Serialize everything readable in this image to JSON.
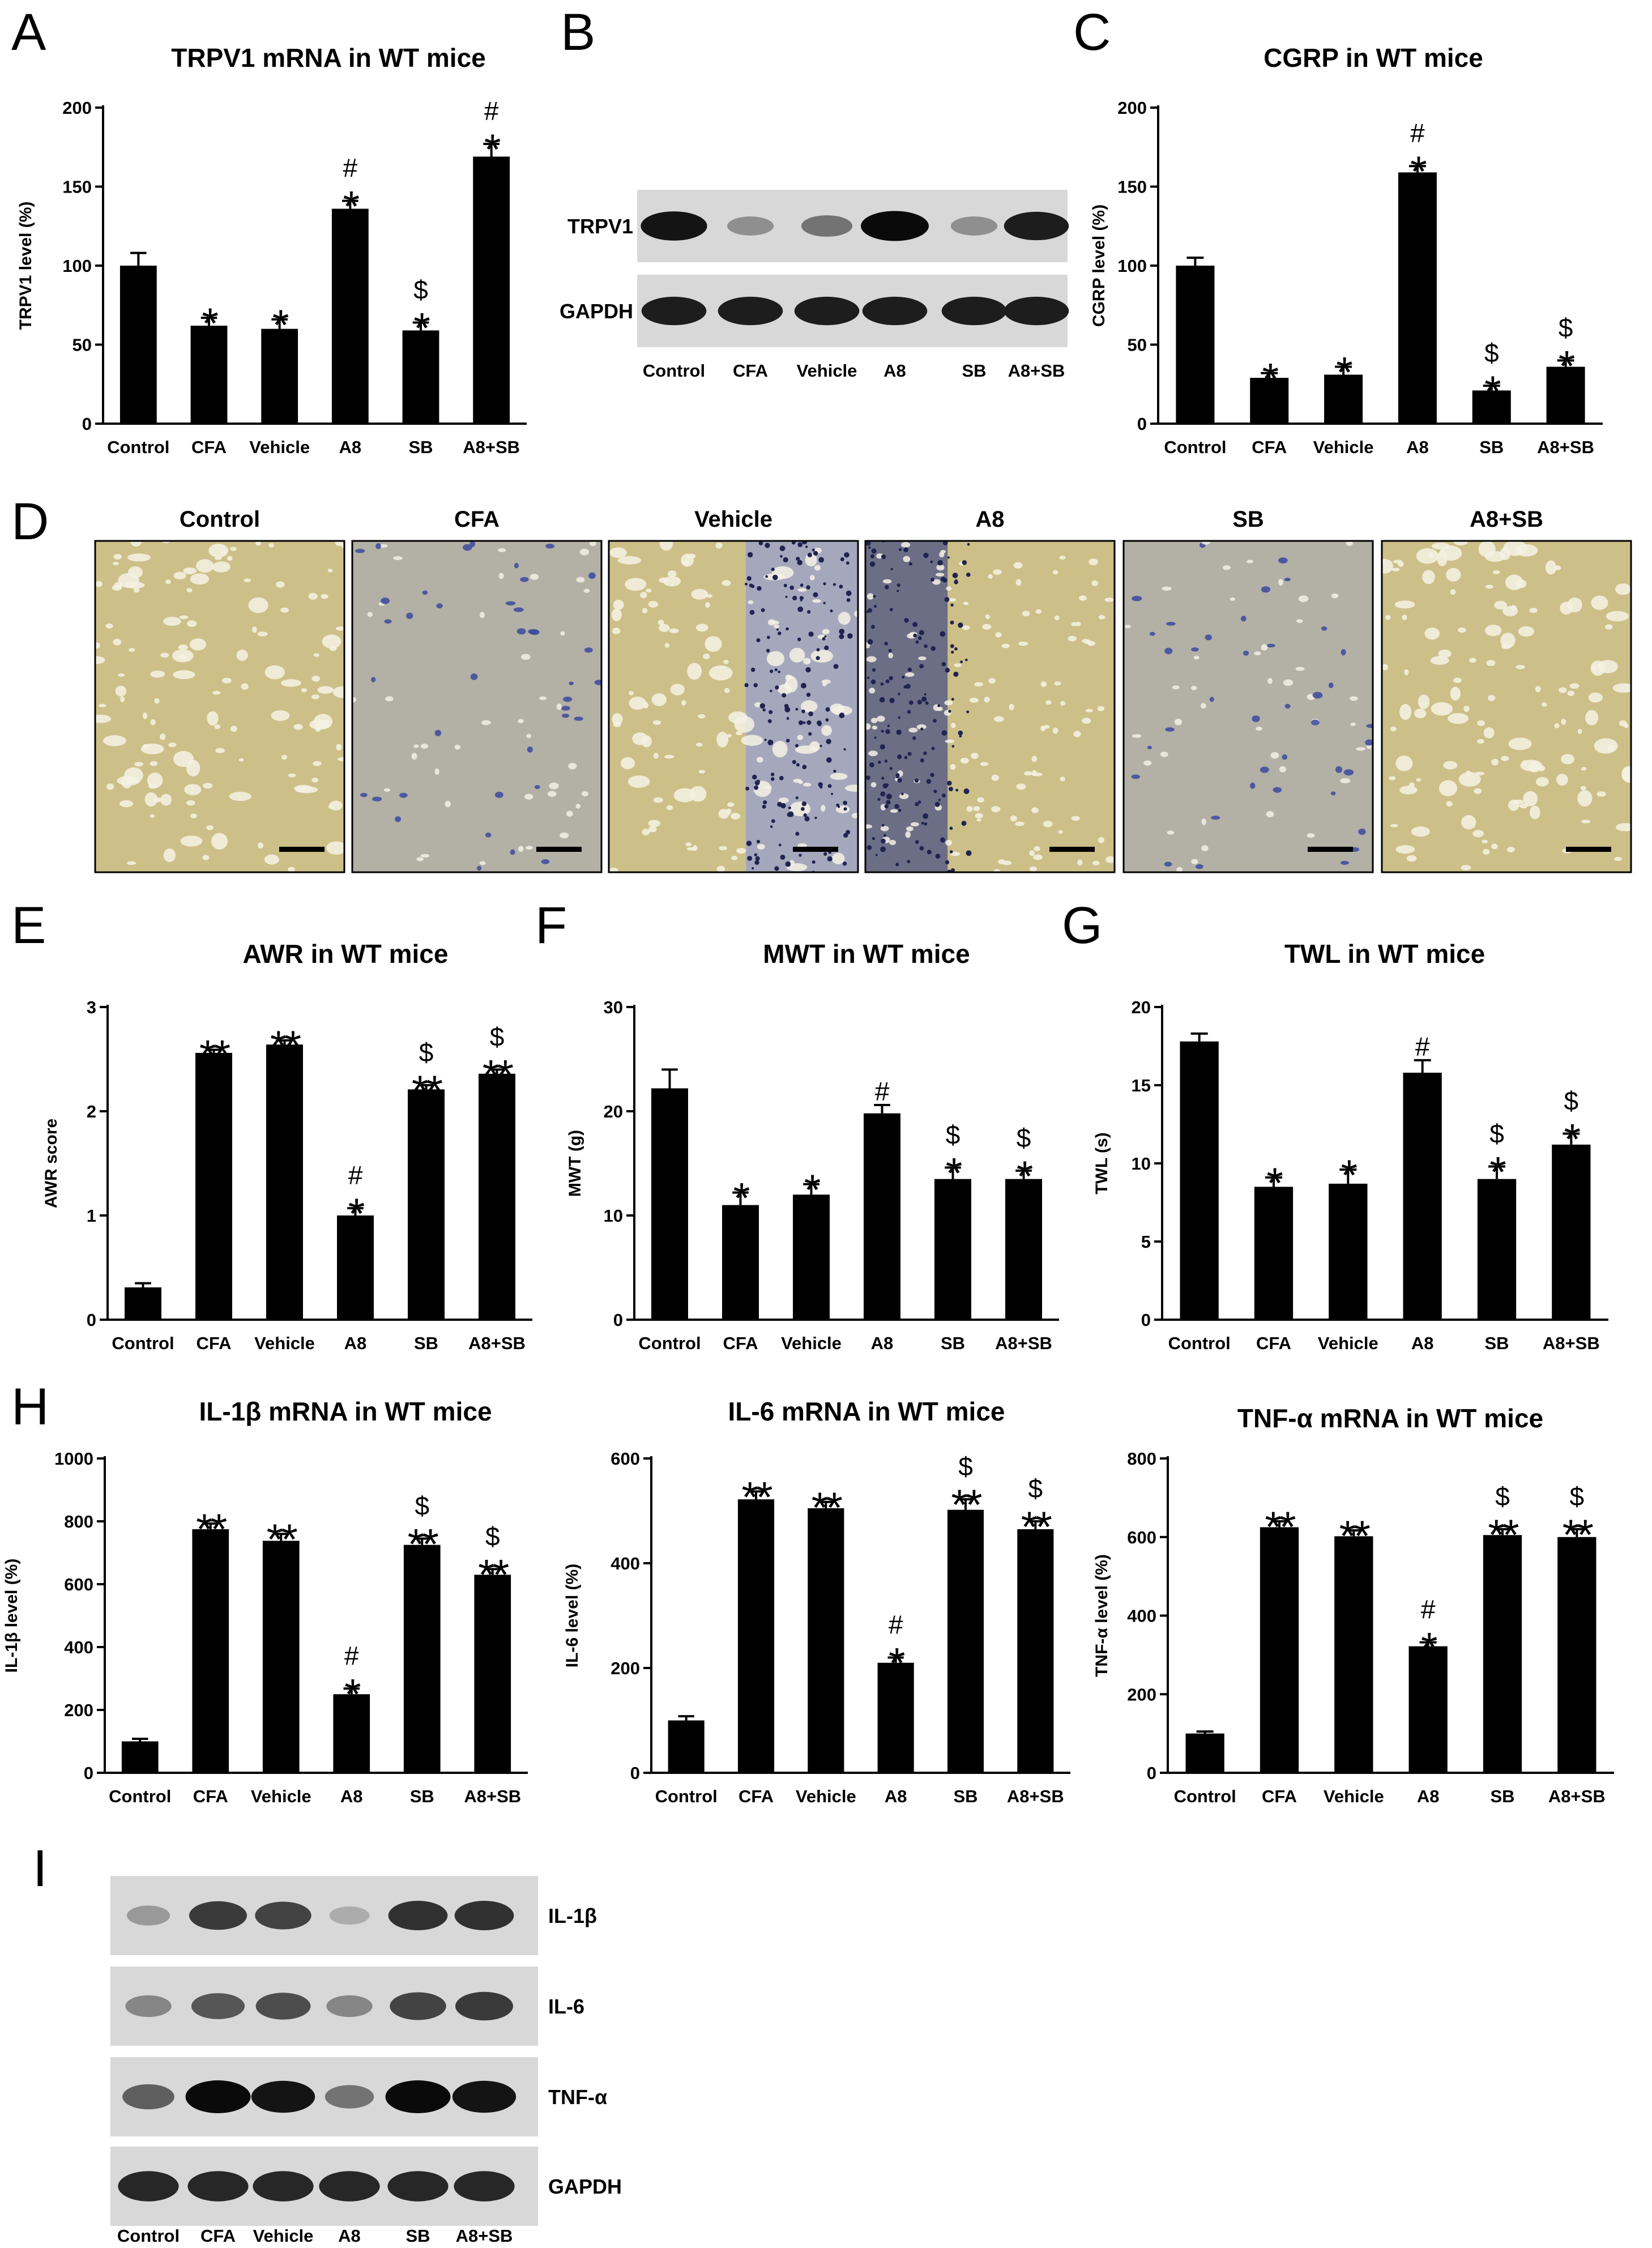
{
  "panel_letters": [
    "A",
    "B",
    "C",
    "D",
    "E",
    "F",
    "G",
    "H",
    "I"
  ],
  "colors": {
    "bar": "#000000",
    "axis": "#000000",
    "blot_bg": "#d8d8d8",
    "band": "#111111",
    "tissue_tan": "#cdbf88",
    "tissue_grey": "#b3b0a6",
    "nuclei": "#3b4a9c"
  },
  "groups": [
    "Control",
    "CFA",
    "Vehicle",
    "A8",
    "SB",
    "A8+SB"
  ],
  "chart_data": [
    {
      "id": "A",
      "type": "bar",
      "title": "TRPV1 mRNA in WT mice",
      "ylabel": "TRPV1 level (%)",
      "categories": [
        "Control",
        "CFA",
        "Vehicle",
        "A8",
        "SB",
        "A8+SB"
      ],
      "values": [
        100,
        62,
        60,
        136,
        59,
        169
      ],
      "errors": [
        8,
        5,
        6,
        5,
        5,
        8
      ],
      "ylim": [
        0,
        200
      ],
      "yticks": [
        0,
        50,
        100,
        150,
        200
      ],
      "annotations": [
        [],
        [
          "*"
        ],
        [
          "*"
        ],
        [
          "*",
          "#"
        ],
        [
          "*",
          "$"
        ],
        [
          "*",
          "#"
        ]
      ]
    },
    {
      "id": "C",
      "type": "bar",
      "title": "CGRP in WT mice",
      "ylabel": "CGRP level (%)",
      "categories": [
        "Control",
        "CFA",
        "Vehicle",
        "A8",
        "SB",
        "A8+SB"
      ],
      "values": [
        100,
        29,
        31,
        159,
        21,
        36
      ],
      "errors": [
        5,
        3,
        5,
        4,
        3,
        4
      ],
      "ylim": [
        0,
        200
      ],
      "yticks": [
        0,
        50,
        100,
        150,
        200
      ],
      "annotations": [
        [],
        [
          "*"
        ],
        [
          "*"
        ],
        [
          "*",
          "#"
        ],
        [
          "*",
          "$"
        ],
        [
          "*",
          "$"
        ]
      ]
    },
    {
      "id": "E",
      "type": "bar",
      "title": "AWR in WT mice",
      "ylabel": "AWR score",
      "categories": [
        "Control",
        "CFA",
        "Vehicle",
        "A8",
        "SB",
        "A8+SB"
      ],
      "values": [
        0.31,
        2.56,
        2.64,
        1.0,
        2.21,
        2.36
      ],
      "errors": [
        0.04,
        0.03,
        0.04,
        0.07,
        0.04,
        0.04
      ],
      "ylim": [
        0,
        3
      ],
      "yticks": [
        0,
        1,
        2,
        3
      ],
      "annotations": [
        [],
        [
          "**"
        ],
        [
          "**"
        ],
        [
          "*",
          "#"
        ],
        [
          "**",
          "$"
        ],
        [
          "**",
          "$"
        ]
      ]
    },
    {
      "id": "F",
      "type": "bar",
      "title": "MWT in WT mice",
      "ylabel": "MWT (g)",
      "categories": [
        "Control",
        "CFA",
        "Vehicle",
        "A8",
        "SB",
        "A8+SB"
      ],
      "values": [
        22.2,
        11.0,
        12.0,
        19.8,
        13.5,
        13.5
      ],
      "errors": [
        1.8,
        1.2,
        1.0,
        0.8,
        1.1,
        0.8
      ],
      "ylim": [
        0,
        30
      ],
      "yticks": [
        0,
        10,
        20,
        30
      ],
      "annotations": [
        [],
        [
          "*"
        ],
        [
          "*"
        ],
        [
          "#"
        ],
        [
          "*",
          "$"
        ],
        [
          "*",
          "$"
        ]
      ]
    },
    {
      "id": "G",
      "type": "bar",
      "title": "TWL in WT mice",
      "ylabel": "TWL (s)",
      "categories": [
        "Control",
        "CFA",
        "Vehicle",
        "A8",
        "SB",
        "A8+SB"
      ],
      "values": [
        17.8,
        8.5,
        8.7,
        15.8,
        9.0,
        11.2
      ],
      "errors": [
        0.5,
        0.6,
        0.9,
        0.8,
        0.8,
        0.7
      ],
      "ylim": [
        0,
        20
      ],
      "yticks": [
        0,
        5,
        10,
        15,
        20
      ],
      "annotations": [
        [],
        [
          "*"
        ],
        [
          "*"
        ],
        [
          "#"
        ],
        [
          "*",
          "$"
        ],
        [
          "*",
          "$"
        ]
      ]
    },
    {
      "id": "H1",
      "type": "bar",
      "title": "IL-1β mRNA in WT mice",
      "ylabel": "IL-1β level (%)",
      "categories": [
        "Control",
        "CFA",
        "Vehicle",
        "A8",
        "SB",
        "A8+SB"
      ],
      "values": [
        100,
        775,
        738,
        250,
        725,
        630
      ],
      "errors": [
        8,
        18,
        22,
        18,
        20,
        18
      ],
      "ylim": [
        0,
        1000
      ],
      "yticks": [
        0,
        200,
        400,
        600,
        800,
        1000
      ],
      "annotations": [
        [],
        [
          "**"
        ],
        [
          "**"
        ],
        [
          "*",
          "#"
        ],
        [
          "**",
          "$"
        ],
        [
          "**",
          "$"
        ]
      ]
    },
    {
      "id": "H2",
      "type": "bar",
      "title": "IL-6 mRNA in WT mice",
      "ylabel": "IL-6 level (%)",
      "categories": [
        "Control",
        "CFA",
        "Vehicle",
        "A8",
        "SB",
        "A8+SB"
      ],
      "values": [
        100,
        522,
        505,
        210,
        502,
        465
      ],
      "errors": [
        8,
        15,
        12,
        10,
        20,
        15
      ],
      "ylim": [
        0,
        600
      ],
      "yticks": [
        0,
        200,
        400,
        600
      ],
      "annotations": [
        [],
        [
          "**"
        ],
        [
          "**"
        ],
        [
          "*",
          "#"
        ],
        [
          "**",
          "$"
        ],
        [
          "**",
          "$"
        ]
      ]
    },
    {
      "id": "H3",
      "type": "bar",
      "title": "TNF-α mRNA in WT mice",
      "ylabel": "TNF-α level (%)",
      "categories": [
        "Control",
        "CFA",
        "Vehicle",
        "A8",
        "SB",
        "A8+SB"
      ],
      "values": [
        100,
        625,
        602,
        322,
        605,
        600
      ],
      "errors": [
        5,
        15,
        15,
        10,
        15,
        20
      ],
      "ylim": [
        0,
        800
      ],
      "yticks": [
        0,
        200,
        400,
        600,
        800
      ],
      "annotations": [
        [],
        [
          "**"
        ],
        [
          "**"
        ],
        [
          "*",
          "#"
        ],
        [
          "**",
          "$"
        ],
        [
          "**",
          "$"
        ]
      ]
    }
  ],
  "blot_B": {
    "rows": [
      {
        "label": "TRPV1",
        "intensity": [
          0.95,
          0.3,
          0.45,
          1.0,
          0.3,
          0.9
        ]
      },
      {
        "label": "GAPDH",
        "intensity": [
          0.9,
          0.9,
          0.9,
          0.9,
          0.9,
          0.9
        ]
      }
    ],
    "lanes": [
      "Control",
      "CFA",
      "Vehicle",
      "A8",
      "SB",
      "A8+SB"
    ]
  },
  "blot_I": {
    "rows": [
      {
        "label": "IL-1β",
        "intensity": [
          0.25,
          0.75,
          0.7,
          0.15,
          0.8,
          0.8
        ]
      },
      {
        "label": "IL-6",
        "intensity": [
          0.35,
          0.6,
          0.65,
          0.35,
          0.7,
          0.75
        ]
      },
      {
        "label": "TNF-α",
        "intensity": [
          0.55,
          1.0,
          0.95,
          0.45,
          1.0,
          0.95
        ]
      },
      {
        "label": "GAPDH",
        "intensity": [
          0.85,
          0.85,
          0.85,
          0.85,
          0.85,
          0.85
        ]
      }
    ],
    "lanes": [
      "Control",
      "CFA",
      "Vehicle",
      "A8",
      "SB",
      "A8+SB"
    ]
  },
  "histology_D": {
    "labels": [
      "Control",
      "CFA",
      "Vehicle",
      "A8",
      "SB",
      "A8+SB"
    ],
    "styles": [
      "tan",
      "grey",
      "tan-blue",
      "dark-blue",
      "grey",
      "tan"
    ]
  }
}
